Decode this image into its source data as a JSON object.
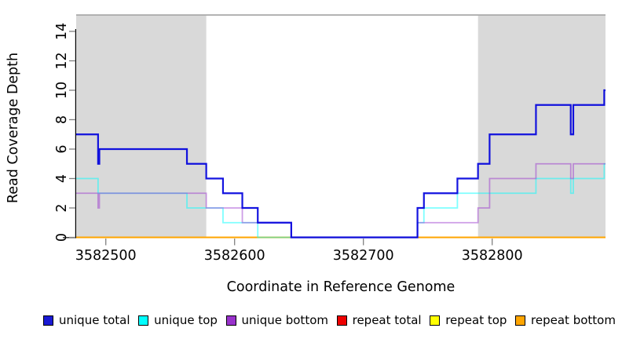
{
  "chart_data": {
    "type": "line",
    "subtype": "step-coverage",
    "title": "",
    "xlabel": "Coordinate in Reference Genome",
    "ylabel": "Read Coverage Depth",
    "xlim": [
      3582477,
      3582888
    ],
    "ylim": [
      0,
      15
    ],
    "x_ticks": [
      3582500,
      3582600,
      3582700,
      3582800
    ],
    "y_ticks": [
      0,
      2,
      4,
      6,
      8,
      10,
      12,
      14
    ],
    "grid": false,
    "background_color": "#ffffff",
    "shade_color": "#d9d9d9",
    "top_boundary_color": "#a9a9a9",
    "axis_color": "#000000",
    "tick_color": "#808080",
    "shaded_regions": [
      {
        "from": 3582477,
        "to": 3582578
      },
      {
        "from": 3582789,
        "to": 3582888
      }
    ],
    "series": [
      {
        "name": "unique total",
        "color": "#0000dd",
        "opacity": 0.92,
        "width": 2.2,
        "steps": [
          [
            3582477,
            7
          ],
          [
            3582494,
            5
          ],
          [
            3582495,
            6
          ],
          [
            3582563,
            5
          ],
          [
            3582578,
            4
          ],
          [
            3582591,
            3
          ],
          [
            3582606,
            2
          ],
          [
            3582618,
            1
          ],
          [
            3582644,
            0
          ],
          [
            3582742,
            2
          ],
          [
            3582747,
            3
          ],
          [
            3582773,
            4
          ],
          [
            3582789,
            5
          ],
          [
            3582798,
            7
          ],
          [
            3582834,
            9
          ],
          [
            3582861,
            7
          ],
          [
            3582863,
            9
          ],
          [
            3582887,
            10
          ]
        ]
      },
      {
        "name": "unique top",
        "color": "#00ffff",
        "opacity": 0.5,
        "width": 1.8,
        "steps": [
          [
            3582477,
            4
          ],
          [
            3582494,
            3
          ],
          [
            3582563,
            2
          ],
          [
            3582591,
            1
          ],
          [
            3582618,
            0
          ],
          [
            3582742,
            1
          ],
          [
            3582747,
            2
          ],
          [
            3582773,
            3
          ],
          [
            3582834,
            4
          ],
          [
            3582861,
            3
          ],
          [
            3582863,
            4
          ],
          [
            3582887,
            5
          ]
        ]
      },
      {
        "name": "unique bottom",
        "color": "#9932cc",
        "opacity": 0.48,
        "width": 1.8,
        "steps": [
          [
            3582477,
            3
          ],
          [
            3582494,
            2
          ],
          [
            3582495,
            3
          ],
          [
            3582578,
            2
          ],
          [
            3582606,
            1
          ],
          [
            3582644,
            0
          ],
          [
            3582742,
            1
          ],
          [
            3582789,
            2
          ],
          [
            3582798,
            4
          ],
          [
            3582834,
            5
          ],
          [
            3582861,
            4
          ],
          [
            3582863,
            5
          ]
        ]
      },
      {
        "name": "repeat total",
        "color": "#dd0000",
        "opacity": 1,
        "width": 1.6,
        "steps": [
          [
            3582477,
            0
          ]
        ]
      },
      {
        "name": "repeat top",
        "color": "#ffff00",
        "opacity": 1,
        "width": 1.6,
        "steps": [
          [
            3582477,
            0
          ]
        ]
      },
      {
        "name": "repeat bottom",
        "color": "#ffa500",
        "opacity": 1,
        "width": 2,
        "steps": [
          [
            3582477,
            0
          ]
        ]
      }
    ]
  },
  "legend": {
    "items": [
      {
        "label": "unique total",
        "color": "#1a1ad4"
      },
      {
        "label": "unique top",
        "color": "#00ffff"
      },
      {
        "label": "unique bottom",
        "color": "#9932cc"
      },
      {
        "label": "repeat total",
        "color": "#ee0000"
      },
      {
        "label": "repeat top",
        "color": "#ffff00"
      },
      {
        "label": "repeat bottom",
        "color": "#ffa500"
      }
    ]
  }
}
